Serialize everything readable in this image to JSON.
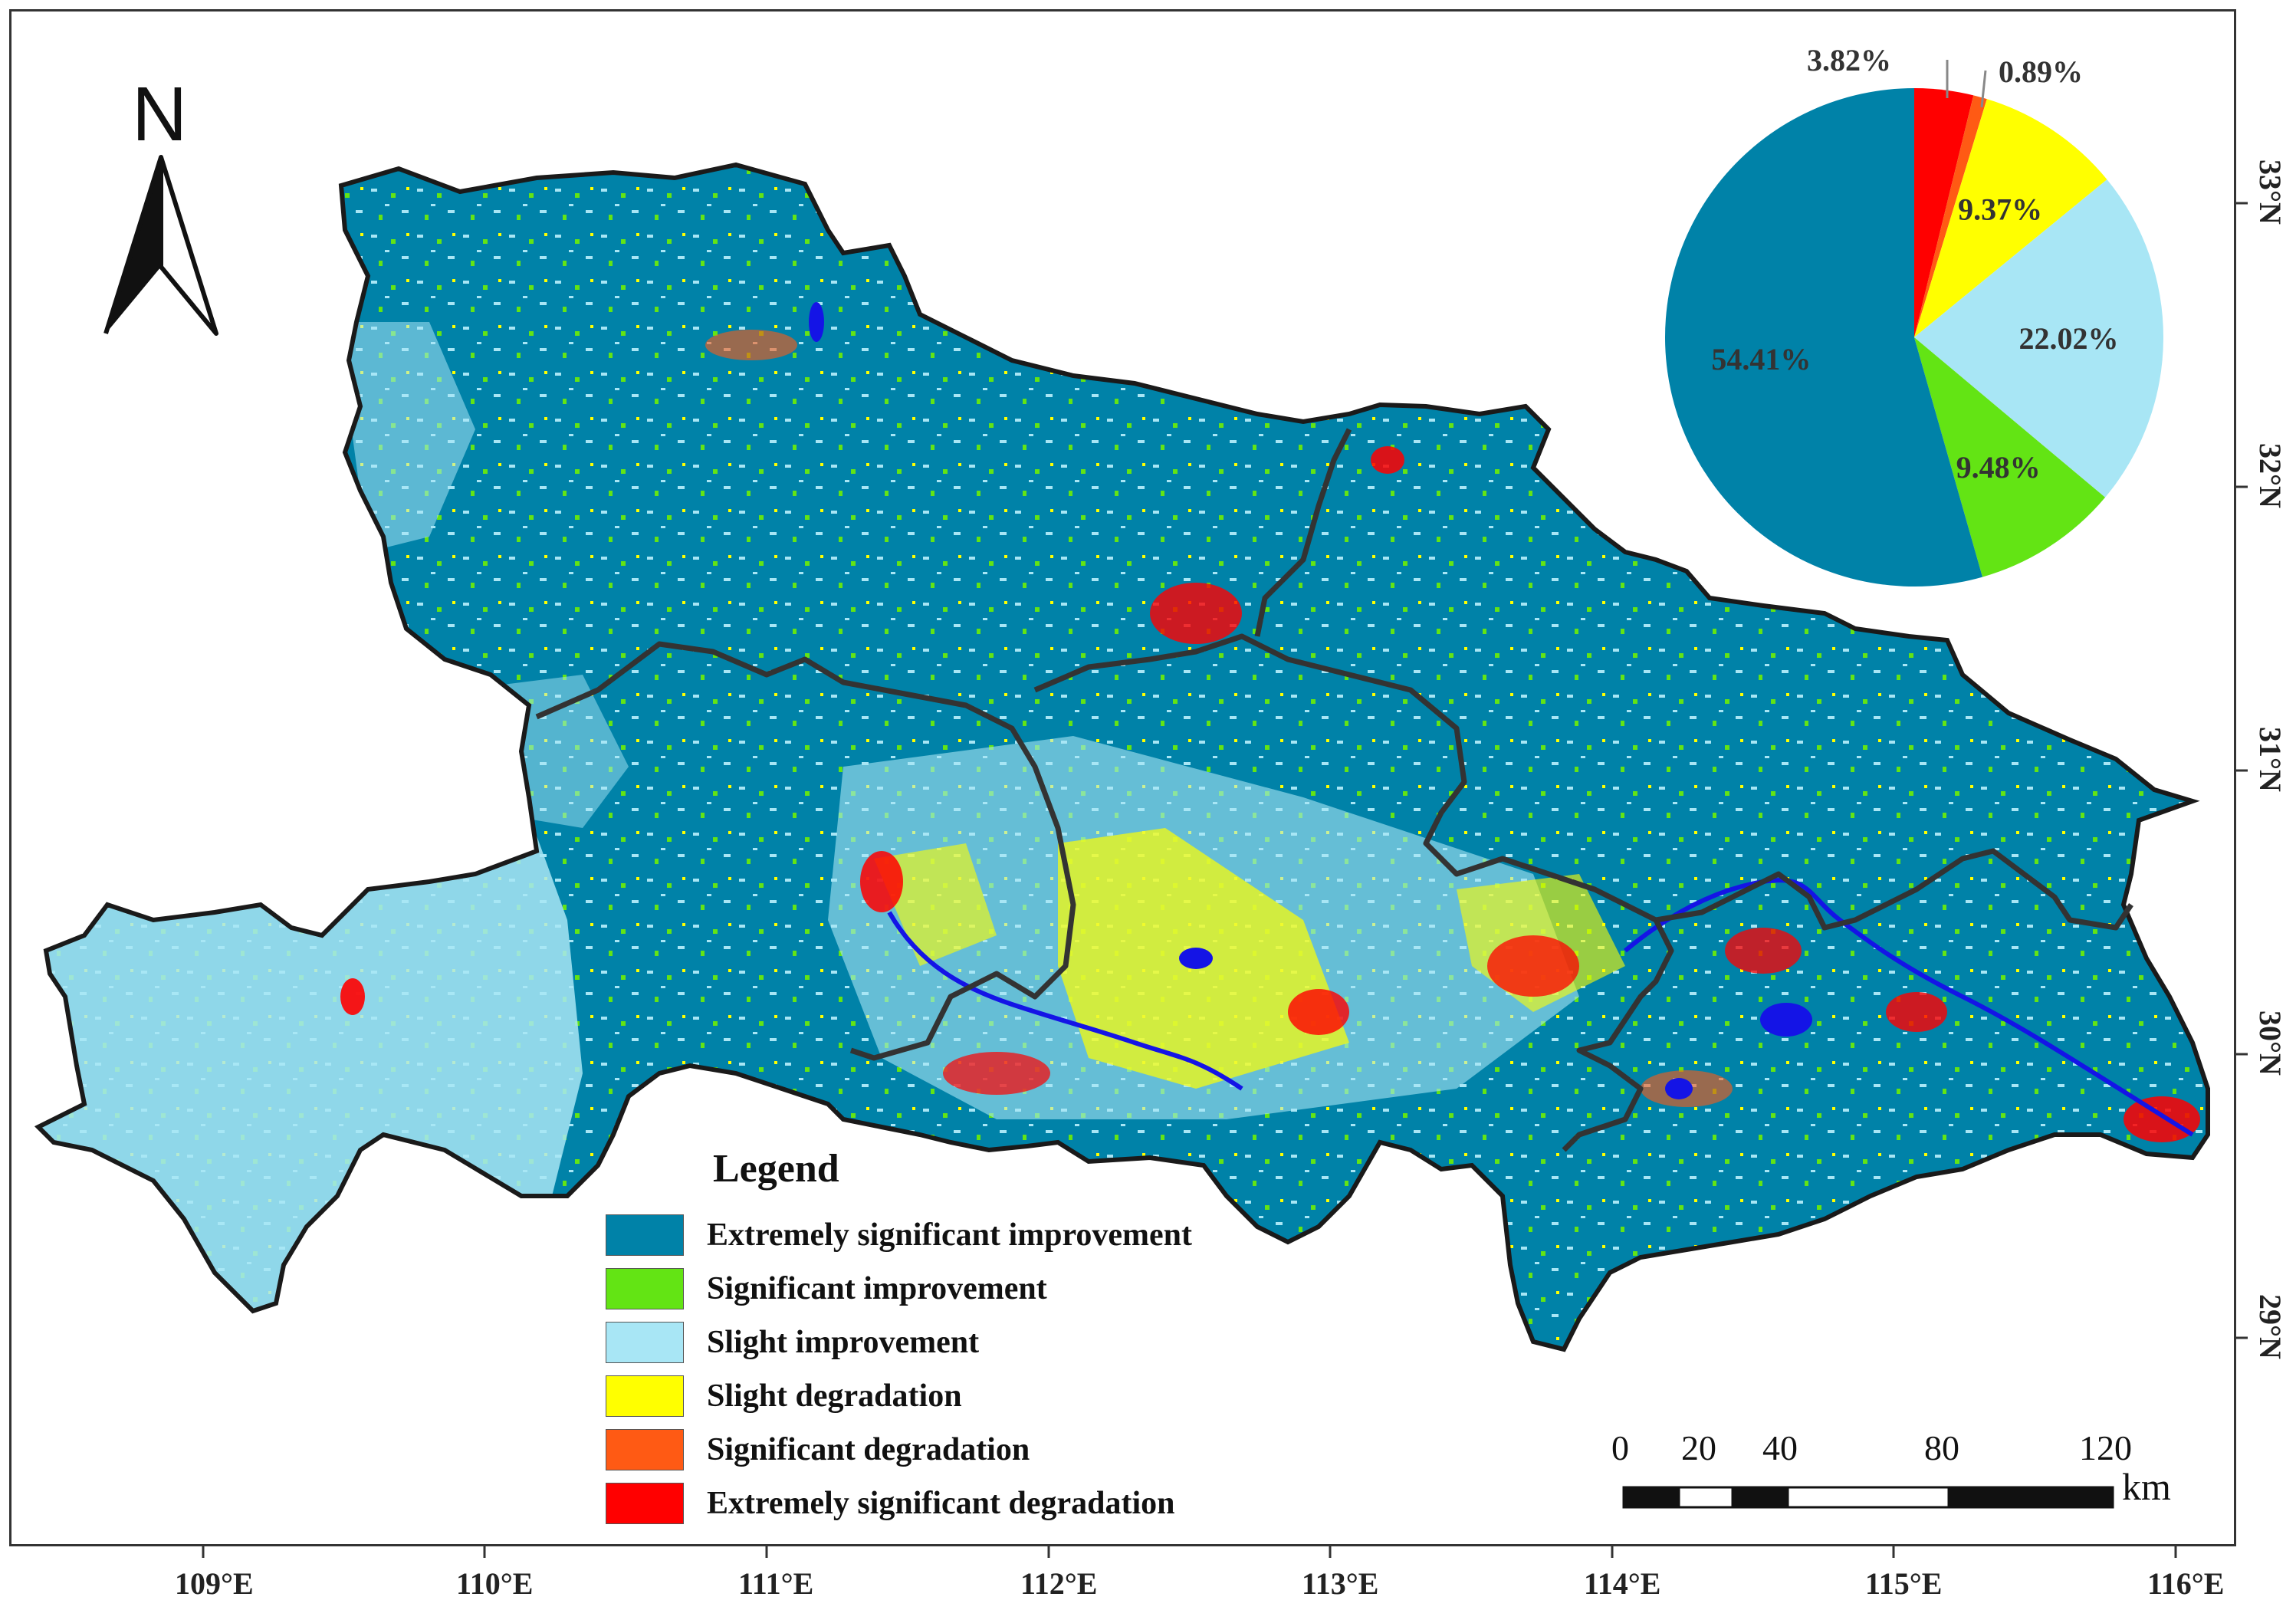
{
  "colors": {
    "extremely_significant_improvement": "#0082A8",
    "significant_improvement": "#63E414",
    "slight_improvement": "#A8E6F5",
    "slight_degradation": "#FFFF00",
    "significant_degradation": "#FF5A14",
    "extremely_significant_degradation": "#FF0000",
    "water": "#1414E6",
    "boundary": "#333333"
  },
  "north_arrow": {
    "label": "N",
    "icon": "north-arrow-icon"
  },
  "legend": {
    "title": "Legend",
    "items": [
      {
        "label": "Extremely significant improvement",
        "color": "#0082A8"
      },
      {
        "label": "Significant improvement",
        "color": "#63E414"
      },
      {
        "label": "Slight improvement",
        "color": "#A8E6F5"
      },
      {
        "label": "Slight degradation",
        "color": "#FFFF00"
      },
      {
        "label": "Significant degradation",
        "color": "#FF5A14"
      },
      {
        "label": "Extremely significant degradation",
        "color": "#FF0000"
      }
    ]
  },
  "axes": {
    "longitude_labels": [
      "109°E",
      "110°E",
      "111°E",
      "112°E",
      "113°E",
      "114°E",
      "115°E",
      "116°E"
    ],
    "latitude_labels": [
      "33°N",
      "32°N",
      "31°N",
      "30°N",
      "29°N"
    ]
  },
  "scale_bar": {
    "ticks": [
      "0",
      "20",
      "40",
      "80",
      "120"
    ],
    "unit": "km"
  },
  "chart_data": {
    "type": "pie",
    "slices": [
      {
        "category": "Extremely significant degradation",
        "value": 3.82,
        "label": "3.82%",
        "color": "#FF0000"
      },
      {
        "category": "Significant degradation",
        "value": 0.89,
        "label": "0.89%",
        "color": "#FF5A14"
      },
      {
        "category": "Slight degradation",
        "value": 9.37,
        "label": "9.37%",
        "color": "#FFFF00"
      },
      {
        "category": "Slight improvement",
        "value": 22.02,
        "label": "22.02%",
        "color": "#A8E6F5"
      },
      {
        "category": "Significant improvement",
        "value": 9.48,
        "label": "9.48%",
        "color": "#63E414"
      },
      {
        "category": "Extremely significant improvement",
        "value": 54.41,
        "label": "54.41%",
        "color": "#0082A8"
      }
    ]
  }
}
